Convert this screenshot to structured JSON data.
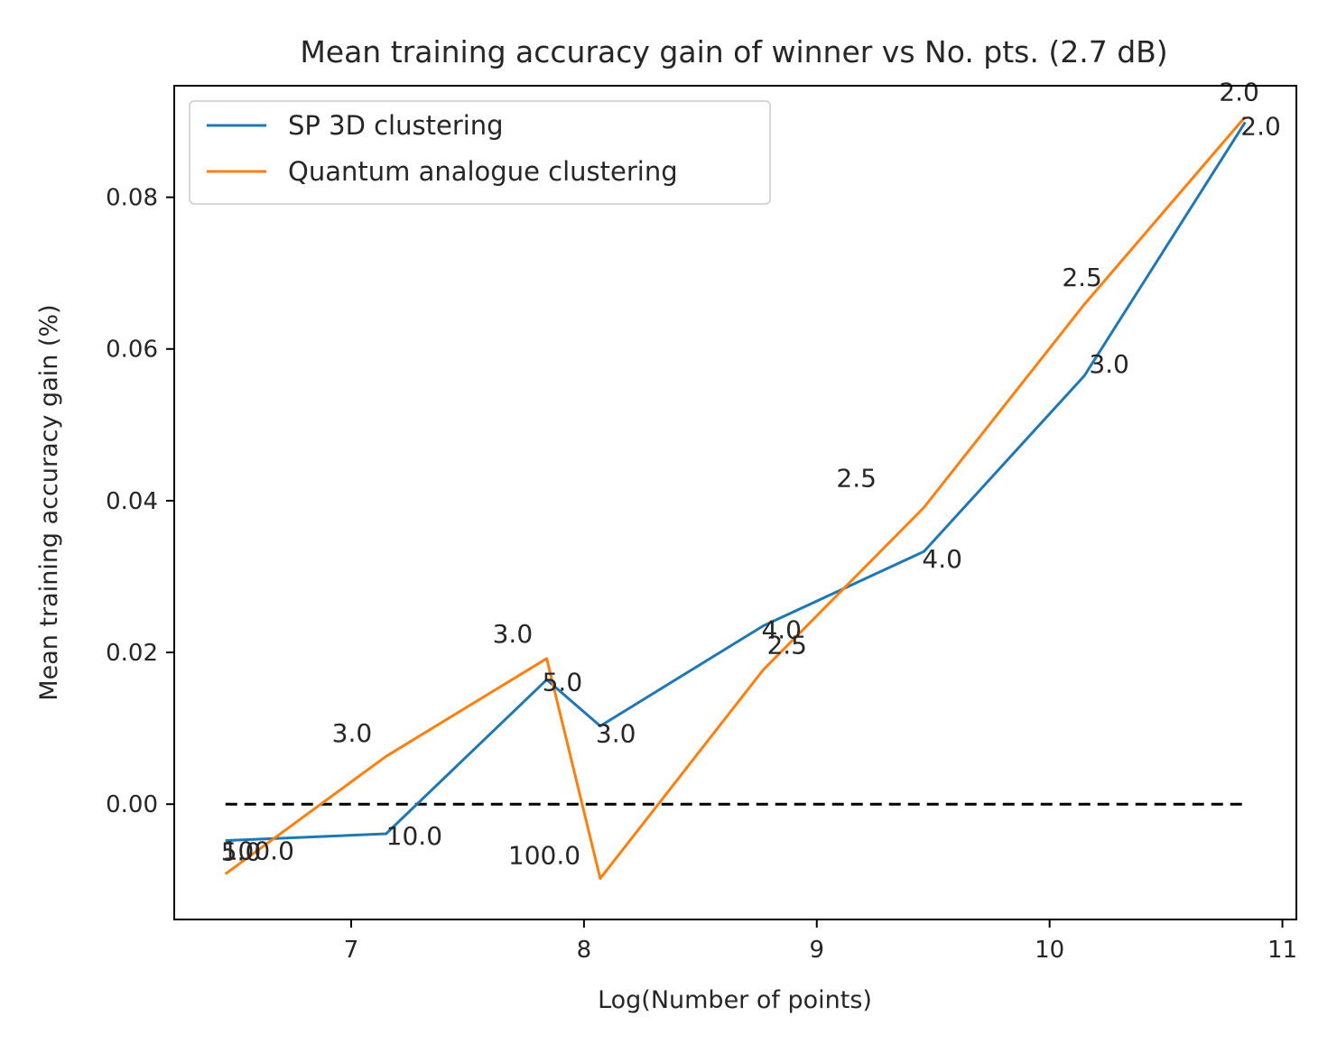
{
  "chart_data": {
    "type": "line",
    "title": "Mean training accuracy gain of winner vs No. pts. (2.7 dB)",
    "xlabel": "Log(Number of points)",
    "ylabel": "Mean training accuracy gain (%)",
    "xlim": [
      6.24,
      11.06
    ],
    "ylim": [
      -0.0152,
      0.0947
    ],
    "xticks": [
      7,
      8,
      9,
      10,
      11
    ],
    "xtick_labels": [
      "7",
      "8",
      "9",
      "10",
      "11"
    ],
    "yticks": [
      0.0,
      0.02,
      0.04,
      0.06,
      0.08
    ],
    "ytick_labels": [
      "0.00",
      "0.02",
      "0.04",
      "0.06",
      "0.08"
    ],
    "grid": false,
    "legend_position": "top-left",
    "colors": {
      "series1": "#1f77b4",
      "series2": "#ff7f0e",
      "reference": "#000000"
    },
    "series": [
      {
        "name": "SP 3D clustering",
        "color": "#1f77b4",
        "points": [
          {
            "x": 6.46,
            "y": -0.0048,
            "label": "5.0"
          },
          {
            "x": 7.15,
            "y": -0.0039,
            "label": "10.0"
          },
          {
            "x": 7.84,
            "y": 0.0164,
            "label": "5.0"
          },
          {
            "x": 8.07,
            "y": 0.0103,
            "label": "3.0"
          },
          {
            "x": 8.77,
            "y": 0.0235,
            "label": "4.0"
          },
          {
            "x": 9.46,
            "y": 0.0333,
            "label": "4.0"
          },
          {
            "x": 10.15,
            "y": 0.0565,
            "label": "3.0"
          },
          {
            "x": 10.84,
            "y": 0.0899,
            "label": "2.0"
          }
        ]
      },
      {
        "name": "Quantum analogue clustering",
        "color": "#ff7f0e",
        "points": [
          {
            "x": 6.46,
            "y": -0.0092,
            "label": "100.0"
          },
          {
            "x": 7.15,
            "y": 0.0063,
            "label": "3.0"
          },
          {
            "x": 7.84,
            "y": 0.0192,
            "label": "3.0"
          },
          {
            "x": 8.07,
            "y": -0.0098,
            "label": "100.0"
          },
          {
            "x": 8.77,
            "y": 0.0177,
            "label": "2.5"
          },
          {
            "x": 9.46,
            "y": 0.0391,
            "label": "2.5"
          },
          {
            "x": 10.15,
            "y": 0.0659,
            "label": "2.5"
          },
          {
            "x": 10.84,
            "y": 0.0906,
            "label": "2.0"
          }
        ]
      }
    ],
    "reference_line": {
      "y": 0.0,
      "x": [
        6.46,
        10.84
      ],
      "style": "dashed"
    }
  }
}
